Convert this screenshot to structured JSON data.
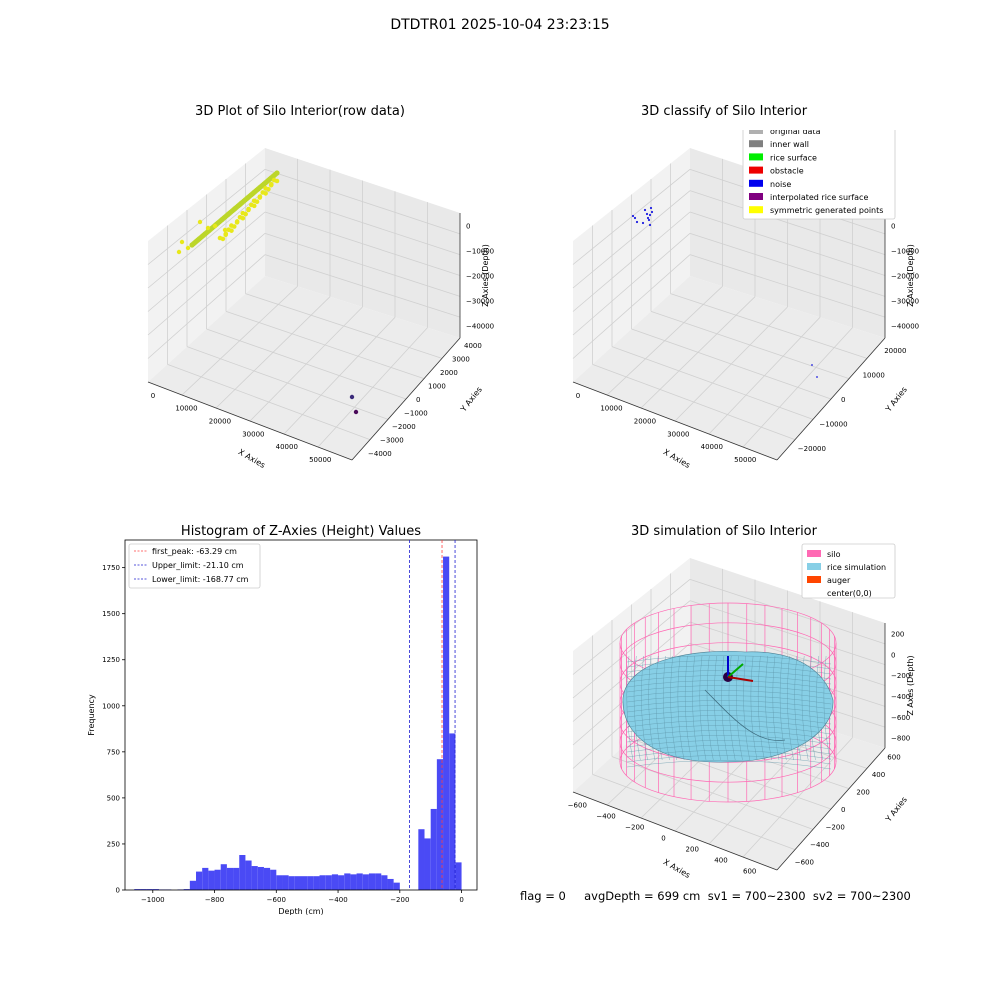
{
  "suptitle": "DTDTR01 2025-10-04 23:23:15",
  "footer": "flag = 0     avgDepth = 699 cm  sv1 = 700~2300  sv2 = 700~2300",
  "colors": {
    "yellow": "#e8e81a",
    "yellow_green": "#bcd62a",
    "blue_noise": "#1f1fe0",
    "hist_bar": "#4a4af5",
    "first_peak": "#ff4040",
    "limit_line": "#1f1fd0",
    "silo": "#ff69b4",
    "rice": "#87cfe6",
    "auger": "#ff4500",
    "pane": "#f2f2f2",
    "grid": "#d0d0d0"
  },
  "chart_data": [
    {
      "type": "scatter",
      "title": "3D Plot of Silo Interior(row data)",
      "xlabel": "X Axies",
      "ylabel": "Y Axies",
      "zlabel": "Z Axies (Depth)",
      "x_ticks": [
        "0",
        "10000",
        "20000",
        "30000",
        "40000",
        "50000"
      ],
      "y_ticks": [
        "−4000",
        "−3000",
        "−2000",
        "−1000",
        "0",
        "1000",
        "2000",
        "3000",
        "4000"
      ],
      "z_ticks": [
        "0",
        "−10000",
        "−20000",
        "−30000",
        "−40000"
      ],
      "series": [
        {
          "color": "yellow",
          "points": "near-origin band"
        },
        {
          "color": "dark-purple",
          "points": [
            [
              47000,
              -2000,
              -40000
            ],
            [
              48000,
              -2700,
              -40000
            ]
          ]
        }
      ]
    },
    {
      "type": "scatter",
      "title": "3D classify of Silo Interior",
      "xlabel": "X Axies",
      "ylabel": "Y Axies",
      "zlabel": "Z Axies (Depth)",
      "x_ticks": [
        "0",
        "10000",
        "20000",
        "30000",
        "40000",
        "50000"
      ],
      "y_ticks": [
        "−20000",
        "−10000",
        "0",
        "10000",
        "20000"
      ],
      "z_ticks": [
        "0",
        "−10000",
        "−20000",
        "−30000",
        "−40000"
      ],
      "legend": [
        {
          "label": "original data",
          "color": "#b0b0b0"
        },
        {
          "label": "inner wall",
          "color": "#808080"
        },
        {
          "label": "rice surface",
          "color": "#00ee00"
        },
        {
          "label": "obstacle",
          "color": "#ee0000"
        },
        {
          "label": "noise",
          "color": "#0000ee"
        },
        {
          "label": "interpolated rice surface",
          "color": "#800080"
        },
        {
          "label": "symmetric generated points",
          "color": "#ffff00"
        }
      ]
    },
    {
      "type": "bar",
      "title": "Histogram of Z-Axies (Height) Values",
      "xlabel": "Depth (cm)",
      "ylabel": "Frequency",
      "xlim": [
        -1090,
        50
      ],
      "ylim": [
        0,
        1900
      ],
      "x_ticks": [
        -1000,
        -800,
        -600,
        -400,
        -200,
        0
      ],
      "x_tick_labels": [
        "−1000",
        "−800",
        "−600",
        "−400",
        "−200",
        "0"
      ],
      "y_ticks": [
        0,
        250,
        500,
        750,
        1000,
        1250,
        1500,
        1750
      ],
      "bin_width": 20,
      "bins": [
        [
          -1060,
          5
        ],
        [
          -1040,
          5
        ],
        [
          -1020,
          5
        ],
        [
          -1000,
          5
        ],
        [
          -980,
          3
        ],
        [
          -960,
          3
        ],
        [
          -940,
          0
        ],
        [
          -920,
          3
        ],
        [
          -900,
          5
        ],
        [
          -880,
          50
        ],
        [
          -860,
          100
        ],
        [
          -840,
          120
        ],
        [
          -820,
          105
        ],
        [
          -800,
          110
        ],
        [
          -780,
          140
        ],
        [
          -760,
          120
        ],
        [
          -740,
          120
        ],
        [
          -720,
          190
        ],
        [
          -700,
          160
        ],
        [
          -680,
          130
        ],
        [
          -660,
          125
        ],
        [
          -640,
          120
        ],
        [
          -620,
          110
        ],
        [
          -600,
          80
        ],
        [
          -580,
          80
        ],
        [
          -560,
          75
        ],
        [
          -540,
          75
        ],
        [
          -520,
          75
        ],
        [
          -500,
          75
        ],
        [
          -480,
          75
        ],
        [
          -460,
          80
        ],
        [
          -440,
          80
        ],
        [
          -420,
          85
        ],
        [
          -400,
          80
        ],
        [
          -380,
          90
        ],
        [
          -360,
          85
        ],
        [
          -340,
          90
        ],
        [
          -320,
          85
        ],
        [
          -300,
          90
        ],
        [
          -280,
          90
        ],
        [
          -260,
          80
        ],
        [
          -240,
          60
        ],
        [
          -220,
          40
        ],
        [
          -200,
          0
        ],
        [
          -180,
          0
        ],
        [
          -160,
          0
        ],
        [
          -140,
          330
        ],
        [
          -120,
          280
        ],
        [
          -100,
          440
        ],
        [
          -80,
          710
        ],
        [
          -60,
          1810
        ],
        [
          -40,
          850
        ],
        [
          -20,
          150
        ]
      ],
      "vlines": [
        {
          "label": "first_peak: -63.29 cm",
          "x": -63.29,
          "color": "first_peak"
        },
        {
          "label": "Upper_limit: -21.10 cm",
          "x": -21.1,
          "color": "limit_line"
        },
        {
          "label": "Lower_limit: -168.77 cm",
          "x": -168.77,
          "color": "limit_line"
        }
      ]
    },
    {
      "type": "surface",
      "title": "3D simulation of Silo Interior",
      "xlabel": "X Axies",
      "ylabel": "Y Axies",
      "zlabel": "Z Axes (Depth)",
      "x_ticks": [
        "−600",
        "−400",
        "−200",
        "0",
        "200",
        "400",
        "600"
      ],
      "y_ticks": [
        "−600",
        "−400",
        "−200",
        "0",
        "200",
        "400",
        "600"
      ],
      "z_ticks": [
        "200",
        "0",
        "−200",
        "−400",
        "−600",
        "−800"
      ],
      "legend": [
        {
          "label": "silo",
          "color": "#ff69b4"
        },
        {
          "label": "rice simulation",
          "color": "#87cfe6"
        },
        {
          "label": "auger",
          "color": "#ff4500"
        },
        {
          "label": "center(0,0)",
          "color": "none"
        }
      ]
    }
  ]
}
